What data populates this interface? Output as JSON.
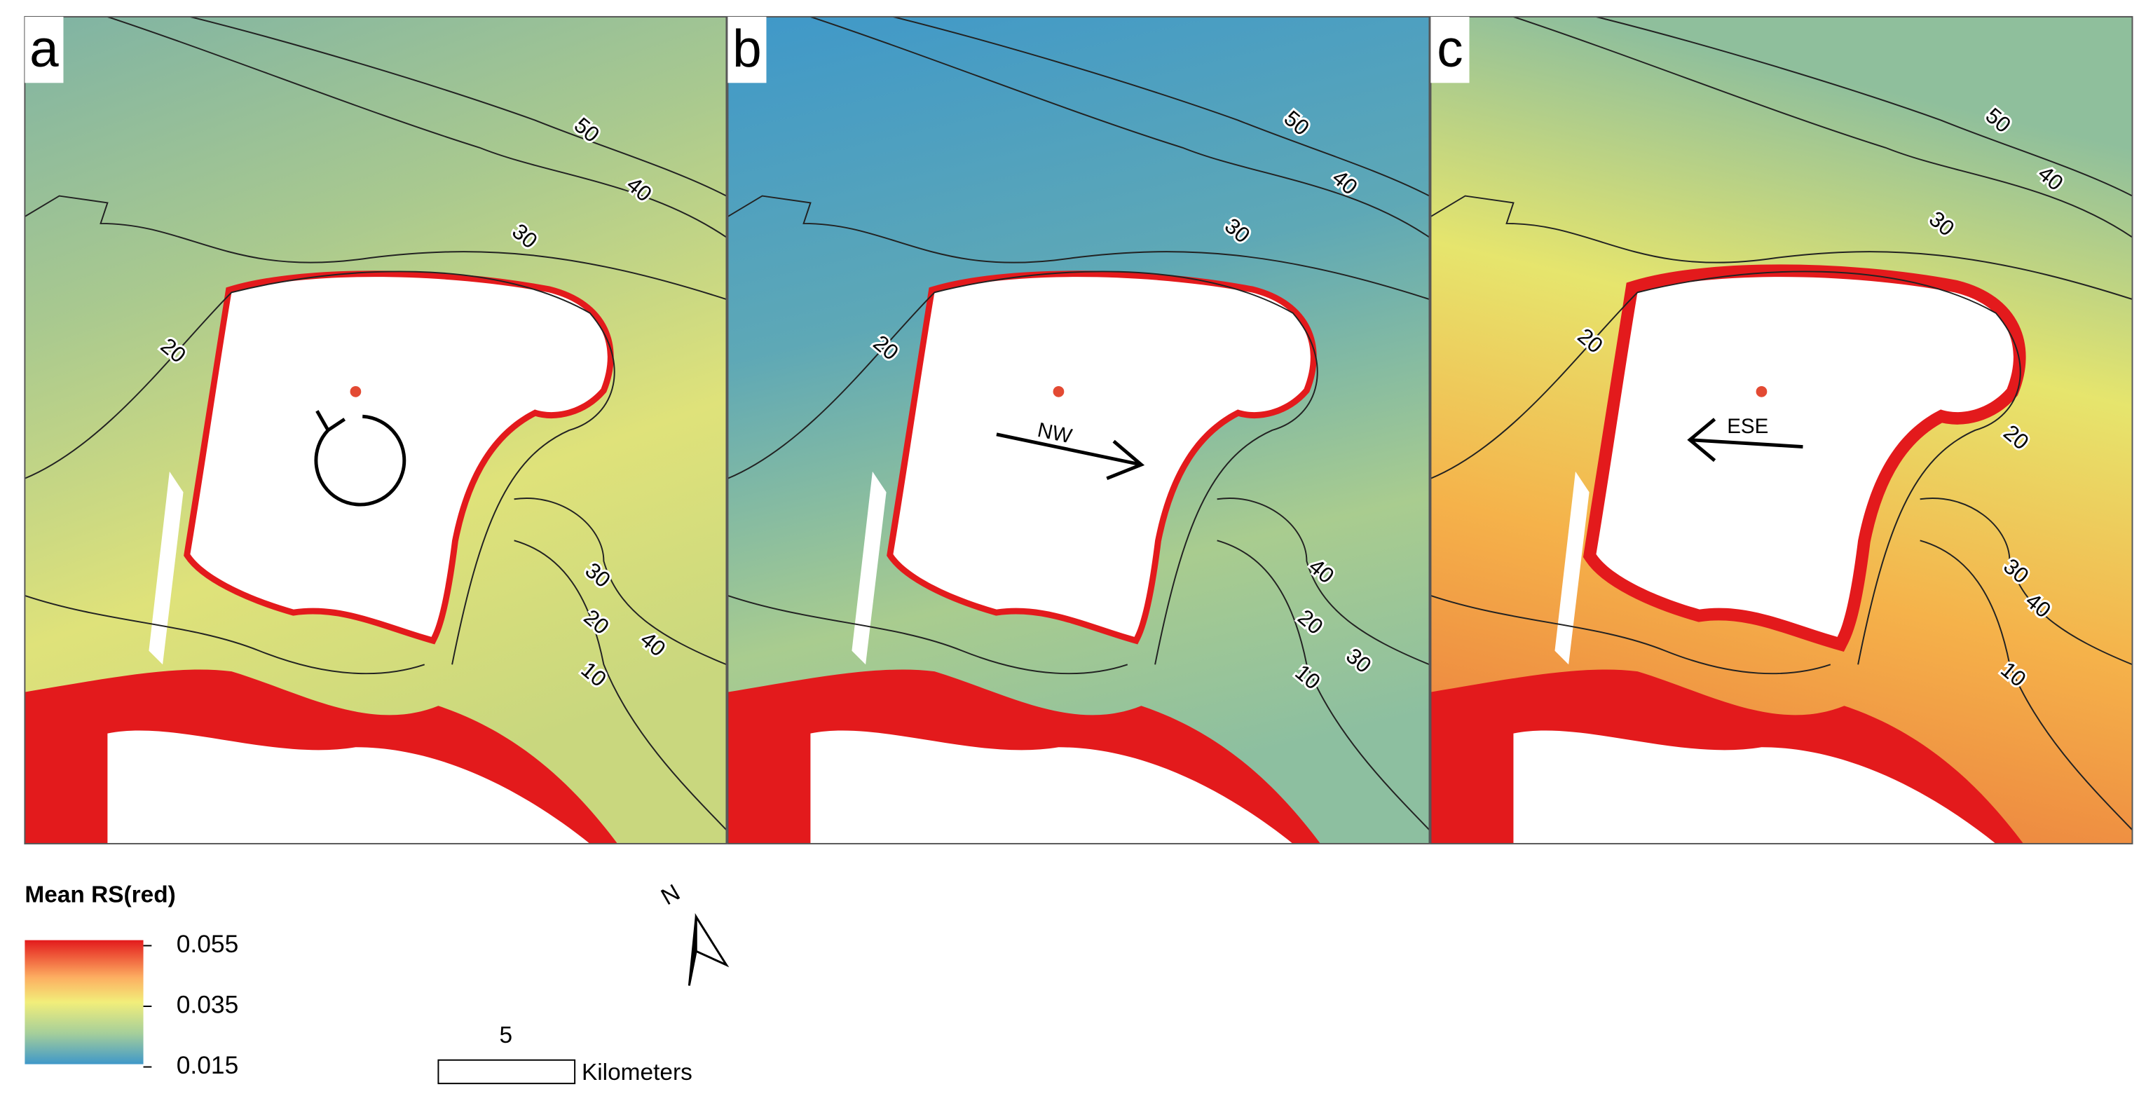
{
  "panels": [
    {
      "label": "a",
      "contour_labels": [
        50,
        40,
        30,
        20,
        30,
        20,
        40,
        10
      ]
    },
    {
      "label": "b",
      "direction": "NW",
      "contour_labels": [
        50,
        40,
        30,
        20,
        40,
        20,
        30,
        10
      ]
    },
    {
      "label": "c",
      "direction": "ESE",
      "contour_labels": [
        50,
        40,
        30,
        20,
        20,
        30,
        40,
        10
      ]
    }
  ],
  "legend": {
    "title": "Mean RS(red)",
    "ticks": [
      0.055,
      0.035,
      0.015
    ]
  },
  "north": "N",
  "scale_bar": {
    "distance": "5",
    "unit": "Kilometers"
  }
}
